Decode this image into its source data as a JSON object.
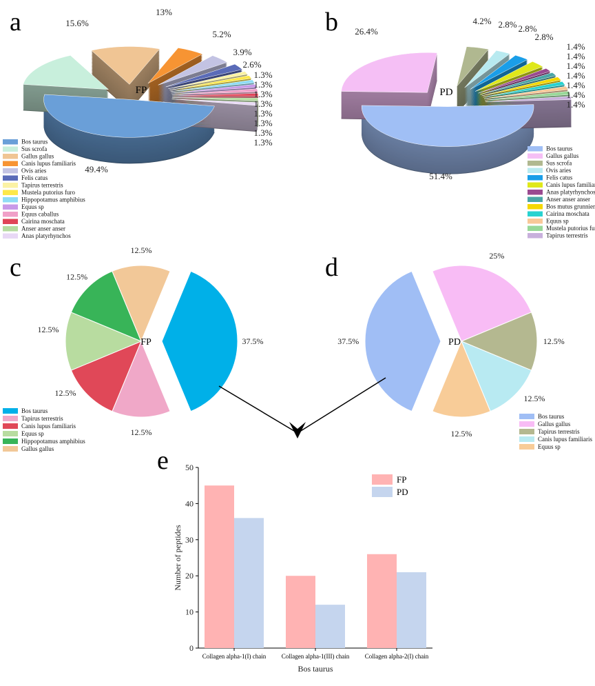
{
  "chart_data": [
    {
      "panel": "a",
      "type": "pie",
      "center_label": "FP",
      "style": "3d-exploded",
      "categories": [
        "Bos taurus",
        "Sus scrofa",
        "Gallus gallus",
        "Canis lupus familiaris",
        "Ovis aries",
        "Felis catus",
        "Tapirus terrestris",
        "Mustela putorius furo",
        "Hippopotamus amphibius",
        "Equus sp",
        "Equus caballus",
        "Cairina moschata",
        "Anser anser anser",
        "Anas platyrhynchos"
      ],
      "values": [
        49.4,
        15.6,
        13,
        5.2,
        3.9,
        2.6,
        1.3,
        1.3,
        1.3,
        1.3,
        1.3,
        1.3,
        1.3,
        1.3
      ],
      "labels": [
        "49.4%",
        "15.6%",
        "13%",
        "5.2%",
        "3.9%",
        "2.6%",
        "1.3%",
        "1.3%",
        "1.3%",
        "1.3%",
        "1.3%",
        "1.3%",
        "1.3%",
        "1.3%"
      ],
      "colors": [
        "#6a9fd8",
        "#c8efdc",
        "#f0c594",
        "#f79433",
        "#c3c3e3",
        "#5a6bb8",
        "#fbf2a4",
        "#fde84a",
        "#8fdcf5",
        "#c89ae8",
        "#f0a0c8",
        "#e04458",
        "#b5dba0",
        "#e8d8f5"
      ],
      "legend": "bottom-left"
    },
    {
      "panel": "b",
      "type": "pie",
      "center_label": "PD",
      "style": "3d-exploded",
      "categories": [
        "Bos taurus",
        "Gallus gallus",
        "Sus scrofa",
        "Ovis aries",
        "Felis catus",
        "Canis lupus familiaris",
        "Anas platyrhynchos",
        "Anser anser anser",
        "Bos mutus grunniens",
        "Cairina moschata",
        "Equus sp",
        "Mustela putorius furo",
        "Tapirus terrestris"
      ],
      "values": [
        51.4,
        26.4,
        4.2,
        2.8,
        2.8,
        2.8,
        1.4,
        1.4,
        1.4,
        1.4,
        1.4,
        1.4,
        1.4
      ],
      "labels": [
        "51.4%",
        "26.4%",
        "4.2%",
        "2.8%",
        "2.8%",
        "2.8%",
        "1.4%",
        "1.4%",
        "1.4%",
        "1.4%",
        "1.4%",
        "1.4%",
        "1.4%"
      ],
      "colors": [
        "#a0bff5",
        "#f5bff5",
        "#b0b890",
        "#b8eaf0",
        "#1a9ee8",
        "#dfe81a",
        "#9a4a90",
        "#4aa6a6",
        "#f5d800",
        "#28d2d0",
        "#f8c898",
        "#98d898",
        "#c8b0dc"
      ],
      "legend": "bottom-right"
    },
    {
      "panel": "c",
      "type": "pie",
      "center_label": "FP",
      "categories": [
        "Bos taurus",
        "Tapirus terrestris",
        "Canis lupus familiaris",
        "Equus sp",
        "Hippopotamus amphibius",
        "Gallus gallus"
      ],
      "values": [
        37.5,
        12.5,
        12.5,
        12.5,
        12.5,
        12.5
      ],
      "labels": [
        "37.5%",
        "12.5%",
        "12.5%",
        "12.5%",
        "12.5%",
        "12.5%"
      ],
      "colors": [
        "#00b0e8",
        "#f0a8c8",
        "#e04858",
        "#b8dca0",
        "#38b458",
        "#f2c898"
      ],
      "legend": "bottom-left"
    },
    {
      "panel": "d",
      "type": "pie",
      "center_label": "PD",
      "categories": [
        "Bos taurus",
        "Gallus gallus",
        "Tapirus terrestris",
        "Canis lupus familiaris",
        "Equus sp"
      ],
      "values": [
        37.5,
        25,
        12.5,
        12.5,
        12.5
      ],
      "labels": [
        "37.5%",
        "25%",
        "12.5%",
        "12.5%",
        "12.5%"
      ],
      "colors": [
        "#a0bef5",
        "#f8bcf5",
        "#b4b890",
        "#b8eaf2",
        "#f8cc98"
      ],
      "legend": "bottom-right"
    },
    {
      "panel": "e",
      "type": "bar",
      "categories": [
        "Collagen alpha-1(I) chain",
        "Collagen alpha-1(III) chain",
        "Collagen alpha-2(I) chain"
      ],
      "series": [
        {
          "name": "FP",
          "values": [
            45,
            20,
            26
          ],
          "color": "#ffb3b3"
        },
        {
          "name": "PD",
          "values": [
            36,
            12,
            21
          ],
          "color": "#c5d5ee"
        }
      ],
      "xlabel": "Bos taurus",
      "ylabel": "Number of peptides",
      "ylim": [
        0,
        50
      ],
      "yticks": [
        0,
        10,
        20,
        30,
        40,
        50
      ],
      "grid": false,
      "legend": "top-right"
    }
  ]
}
